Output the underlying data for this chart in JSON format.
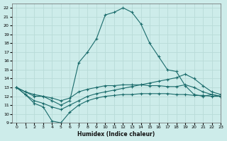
{
  "xlabel": "Humidex (Indice chaleur)",
  "background_color": "#cdecea",
  "grid_color": "#b8dbd8",
  "line_color": "#1a6b6b",
  "xlim": [
    -0.5,
    23
  ],
  "ylim": [
    9,
    22.5
  ],
  "xticks": [
    0,
    1,
    2,
    3,
    4,
    5,
    6,
    7,
    8,
    9,
    10,
    11,
    12,
    13,
    14,
    15,
    16,
    17,
    18,
    19,
    20,
    21,
    22,
    23
  ],
  "yticks": [
    9,
    10,
    11,
    12,
    13,
    14,
    15,
    16,
    17,
    18,
    19,
    20,
    21,
    22
  ],
  "series": [
    {
      "x": [
        0,
        1,
        2,
        3,
        4,
        5,
        6,
        7,
        8,
        9,
        10,
        11,
        12,
        13,
        14,
        15,
        16,
        17,
        18,
        19,
        20,
        21,
        22,
        23
      ],
      "y": [
        13.0,
        12.2,
        11.2,
        10.8,
        9.2,
        9.0,
        10.2,
        11.0,
        11.5,
        11.8,
        12.0,
        12.1,
        12.2,
        12.2,
        12.3,
        12.3,
        12.3,
        12.3,
        12.2,
        12.2,
        12.1,
        12.1,
        12.0,
        12.0
      ]
    },
    {
      "x": [
        0,
        1,
        2,
        3,
        4,
        5,
        6,
        7,
        8,
        9,
        10,
        11,
        12,
        13,
        14,
        15,
        16,
        17,
        18,
        19,
        20,
        21,
        22,
        23
      ],
      "y": [
        13.0,
        12.2,
        11.5,
        11.2,
        10.8,
        10.5,
        11.0,
        11.5,
        12.0,
        12.3,
        12.5,
        12.7,
        12.9,
        13.1,
        13.3,
        13.5,
        13.7,
        13.9,
        14.1,
        14.5,
        14.0,
        13.2,
        12.5,
        12.2
      ]
    },
    {
      "x": [
        0,
        1,
        2,
        3,
        4,
        5,
        6,
        7,
        8,
        9,
        10,
        11,
        12,
        13,
        14,
        15,
        16,
        17,
        18,
        19,
        20,
        21,
        22,
        23
      ],
      "y": [
        13.0,
        12.5,
        12.0,
        12.0,
        11.5,
        11.0,
        11.5,
        15.8,
        17.0,
        18.5,
        21.2,
        21.5,
        22.0,
        21.5,
        20.2,
        18.0,
        16.5,
        15.0,
        14.8,
        13.2,
        12.2,
        12.0,
        12.2,
        12.0
      ]
    },
    {
      "x": [
        0,
        1,
        2,
        3,
        4,
        5,
        6,
        7,
        8,
        9,
        10,
        11,
        12,
        13,
        14,
        15,
        16,
        17,
        18,
        19,
        20,
        21,
        22,
        23
      ],
      "y": [
        13.0,
        12.5,
        12.2,
        12.0,
        11.8,
        11.5,
        11.8,
        12.5,
        12.8,
        13.0,
        13.2,
        13.2,
        13.3,
        13.3,
        13.3,
        13.2,
        13.2,
        13.1,
        13.1,
        13.3,
        13.0,
        12.5,
        12.2,
        12.0
      ]
    }
  ]
}
